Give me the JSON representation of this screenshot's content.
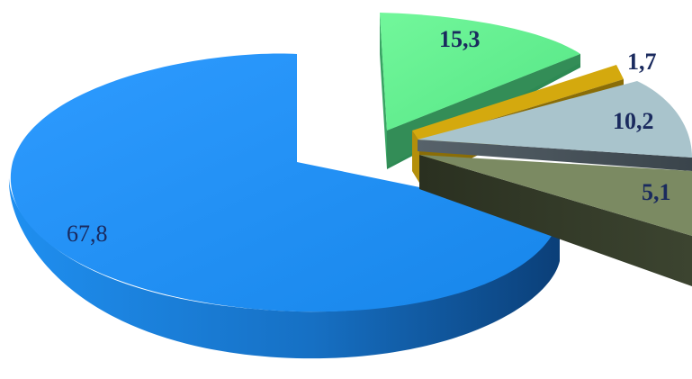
{
  "chart_data": {
    "type": "pie",
    "style": "3d-exploded",
    "title": "",
    "legend": "none",
    "slices": [
      {
        "label": "67,8",
        "value": 67.8,
        "color": "#1f8ff0"
      },
      {
        "label": "15,3",
        "value": 15.3,
        "color": "#63f091"
      },
      {
        "label": "1,7",
        "value": 1.7,
        "color": "#d4a90e"
      },
      {
        "label": "10,2",
        "value": 10.2,
        "color": "#a9c4cc"
      },
      {
        "label": "5,1",
        "value": 5.1,
        "color": "#7b8a62"
      }
    ]
  }
}
